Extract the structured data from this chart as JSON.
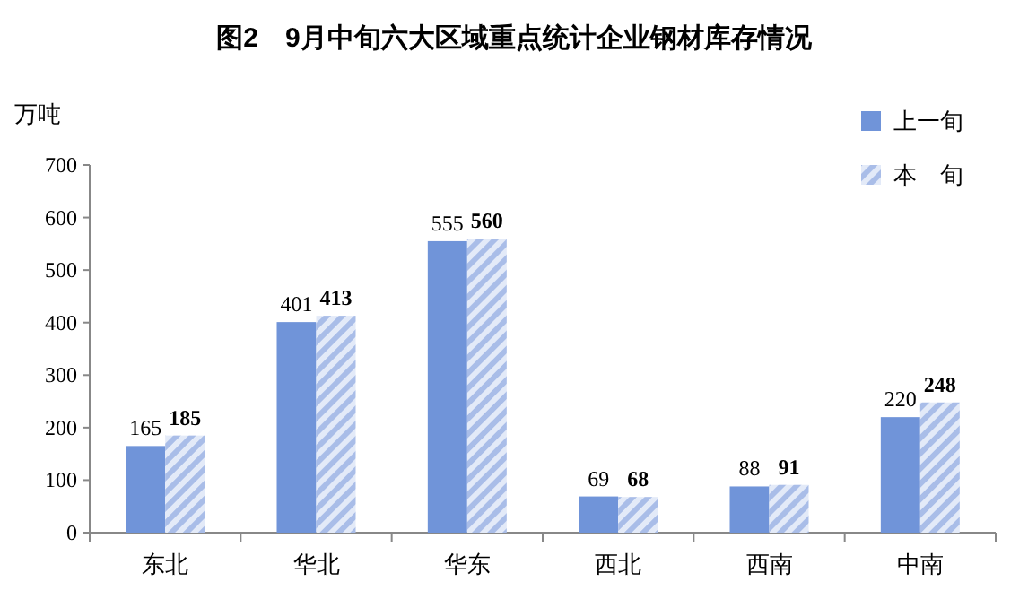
{
  "chart_data": {
    "type": "bar",
    "title": "图2　9月中旬六大区域重点统计企业钢材库存情况",
    "ylabel": "万吨",
    "categories": [
      "东北",
      "华北",
      "华东",
      "西北",
      "西南",
      "中南"
    ],
    "series": [
      {
        "name": "上一旬",
        "color": "#7094d9",
        "values": [
          165,
          401,
          555,
          69,
          88,
          220
        ]
      },
      {
        "name": "本　旬",
        "color": "#a9bde8",
        "values": [
          185,
          413,
          560,
          68,
          91,
          248
        ]
      }
    ],
    "ylim": [
      0,
      700
    ],
    "yticks": [
      0,
      100,
      200,
      300,
      400,
      500,
      600,
      700
    ],
    "data_labels": true,
    "legend": "top right"
  }
}
